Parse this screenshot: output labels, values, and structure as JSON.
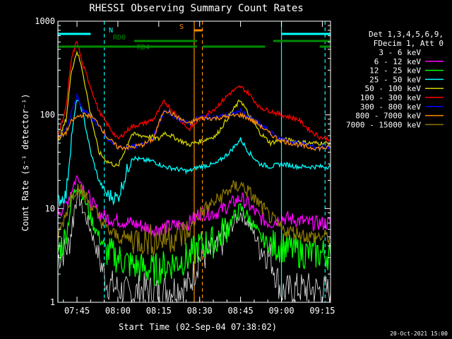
{
  "chart_data": {
    "type": "line",
    "title": "RHESSI Observing Summary Count Rates",
    "xlabel": "Start Time (02-Sep-04 07:38:02)",
    "ylabel": "Count Rate (s⁻¹ detector⁻¹)",
    "yscale": "log",
    "ylim": [
      1,
      1000
    ],
    "xlim_minutes": [
      0,
      100
    ],
    "y_ticks": [
      {
        "value": 1,
        "label": "1"
      },
      {
        "value": 10,
        "label": "10"
      },
      {
        "value": 100,
        "label": "100"
      },
      {
        "value": 1000,
        "label": "1000"
      }
    ],
    "x_ticks": [
      {
        "minute": 7,
        "label": "07:45"
      },
      {
        "minute": 22,
        "label": "08:00"
      },
      {
        "minute": 37,
        "label": "08:15"
      },
      {
        "minute": 52,
        "label": "08:30"
      },
      {
        "minute": 67,
        "label": "08:45"
      },
      {
        "minute": 82,
        "label": "09:00"
      },
      {
        "minute": 97,
        "label": "09:15"
      }
    ],
    "legend": {
      "header": [
        "Det 1,3,4,5,6,9,",
        "FDecim 1, Att 0"
      ],
      "placement": "right"
    },
    "series": [
      {
        "name": "3 - 6 keV",
        "color": "#000000",
        "points": [
          [
            0,
            3
          ],
          [
            4,
            4
          ],
          [
            7,
            15
          ],
          [
            9,
            10
          ],
          [
            12,
            6
          ],
          [
            15,
            3
          ],
          [
            18,
            1.6
          ],
          [
            22,
            1.4
          ],
          [
            27,
            1.2
          ],
          [
            31,
            1.4
          ],
          [
            35,
            1.3
          ],
          [
            48,
            1.5
          ],
          [
            52,
            3
          ],
          [
            58,
            3.5
          ],
          [
            63,
            6
          ],
          [
            67,
            9
          ],
          [
            70,
            7
          ],
          [
            74,
            4
          ],
          [
            78,
            3
          ],
          [
            82,
            1.3
          ],
          [
            88,
            1.4
          ],
          [
            92,
            1.4
          ],
          [
            100,
            1.3
          ]
        ]
      },
      {
        "name": "6 - 12 keV",
        "color": "#ff00ff",
        "points": [
          [
            0,
            9
          ],
          [
            3,
            11
          ],
          [
            5,
            16
          ],
          [
            7,
            22
          ],
          [
            9,
            18
          ],
          [
            12,
            12
          ],
          [
            15,
            9
          ],
          [
            18,
            8
          ],
          [
            22,
            7.5
          ],
          [
            27,
            7
          ],
          [
            31,
            6.5
          ],
          [
            35,
            6
          ],
          [
            48,
            7
          ],
          [
            52,
            9
          ],
          [
            58,
            9
          ],
          [
            63,
            11
          ],
          [
            67,
            13
          ],
          [
            70,
            11
          ],
          [
            74,
            8
          ],
          [
            78,
            7
          ],
          [
            82,
            8
          ],
          [
            88,
            7.5
          ],
          [
            92,
            7
          ],
          [
            100,
            7
          ]
        ]
      },
      {
        "name": "12 - 25 keV",
        "color": "#00ff00",
        "points": [
          [
            0,
            3.5
          ],
          [
            3,
            5
          ],
          [
            5,
            12
          ],
          [
            7,
            18
          ],
          [
            9,
            15
          ],
          [
            12,
            8
          ],
          [
            15,
            5
          ],
          [
            18,
            3.5
          ],
          [
            22,
            3
          ],
          [
            27,
            2.5
          ],
          [
            31,
            2.3
          ],
          [
            35,
            2.2
          ],
          [
            48,
            3
          ],
          [
            52,
            4
          ],
          [
            58,
            4.5
          ],
          [
            63,
            7
          ],
          [
            67,
            10
          ],
          [
            70,
            8
          ],
          [
            74,
            5
          ],
          [
            78,
            4
          ],
          [
            82,
            4
          ],
          [
            88,
            3.5
          ],
          [
            92,
            3.3
          ],
          [
            100,
            3.3
          ]
        ]
      },
      {
        "name": "25 - 50 keV",
        "color": "#00ffff",
        "points": [
          [
            0,
            12
          ],
          [
            3,
            14
          ],
          [
            5,
            60
          ],
          [
            7,
            150
          ],
          [
            9,
            110
          ],
          [
            12,
            40
          ],
          [
            15,
            20
          ],
          [
            18,
            14
          ],
          [
            22,
            13
          ],
          [
            27,
            35
          ],
          [
            31,
            33
          ],
          [
            35,
            32
          ],
          [
            37,
            30
          ],
          [
            39,
            28
          ],
          [
            48,
            25
          ],
          [
            52,
            28
          ],
          [
            58,
            30
          ],
          [
            63,
            40
          ],
          [
            67,
            55
          ],
          [
            70,
            40
          ],
          [
            74,
            30
          ],
          [
            78,
            28
          ],
          [
            82,
            30
          ],
          [
            88,
            28
          ],
          [
            92,
            28
          ],
          [
            96,
            28
          ],
          [
            100,
            28
          ]
        ]
      },
      {
        "name": "50 - 100 keV",
        "color": "#d0d000",
        "points": [
          [
            0,
            50
          ],
          [
            3,
            90
          ],
          [
            5,
            300
          ],
          [
            7,
            480
          ],
          [
            9,
            300
          ],
          [
            12,
            100
          ],
          [
            15,
            40
          ],
          [
            18,
            32
          ],
          [
            22,
            28
          ],
          [
            27,
            62
          ],
          [
            31,
            60
          ],
          [
            35,
            58
          ],
          [
            37,
            55
          ],
          [
            39,
            65
          ],
          [
            48,
            48
          ],
          [
            52,
            52
          ],
          [
            58,
            60
          ],
          [
            63,
            100
          ],
          [
            67,
            145
          ],
          [
            70,
            100
          ],
          [
            74,
            65
          ],
          [
            78,
            50
          ],
          [
            82,
            55
          ],
          [
            88,
            52
          ],
          [
            92,
            50
          ],
          [
            96,
            50
          ],
          [
            100,
            50
          ]
        ]
      },
      {
        "name": "100 - 300 keV",
        "color": "#ff0000",
        "points": [
          [
            0,
            60
          ],
          [
            3,
            120
          ],
          [
            5,
            400
          ],
          [
            7,
            620
          ],
          [
            9,
            350
          ],
          [
            12,
            200
          ],
          [
            15,
            110
          ],
          [
            18,
            80
          ],
          [
            22,
            55
          ],
          [
            27,
            75
          ],
          [
            31,
            80
          ],
          [
            35,
            90
          ],
          [
            37,
            110
          ],
          [
            39,
            140
          ],
          [
            48,
            70
          ],
          [
            52,
            90
          ],
          [
            58,
            120
          ],
          [
            63,
            170
          ],
          [
            67,
            200
          ],
          [
            70,
            170
          ],
          [
            74,
            120
          ],
          [
            78,
            110
          ],
          [
            82,
            100
          ],
          [
            88,
            90
          ],
          [
            92,
            70
          ],
          [
            96,
            58
          ],
          [
            100,
            55
          ]
        ]
      },
      {
        "name": "300 - 800 keV",
        "color": "#0000ff",
        "points": [
          [
            0,
            55
          ],
          [
            3,
            70
          ],
          [
            5,
            110
          ],
          [
            7,
            160
          ],
          [
            9,
            115
          ],
          [
            12,
            95
          ],
          [
            15,
            75
          ],
          [
            18,
            55
          ],
          [
            22,
            45
          ],
          [
            27,
            45
          ],
          [
            31,
            48
          ],
          [
            35,
            58
          ],
          [
            37,
            80
          ],
          [
            39,
            110
          ],
          [
            48,
            80
          ],
          [
            52,
            95
          ],
          [
            58,
            95
          ],
          [
            63,
            100
          ],
          [
            67,
            110
          ],
          [
            70,
            95
          ],
          [
            74,
            80
          ],
          [
            78,
            65
          ],
          [
            82,
            55
          ],
          [
            88,
            50
          ],
          [
            92,
            47
          ],
          [
            96,
            45
          ],
          [
            100,
            46
          ]
        ]
      },
      {
        "name": "800 - 7000 keV",
        "color": "#ff8c00",
        "points": [
          [
            0,
            55
          ],
          [
            3,
            65
          ],
          [
            5,
            85
          ],
          [
            7,
            95
          ],
          [
            9,
            100
          ],
          [
            12,
            98
          ],
          [
            15,
            80
          ],
          [
            18,
            58
          ],
          [
            22,
            45
          ],
          [
            27,
            45
          ],
          [
            31,
            48
          ],
          [
            35,
            55
          ],
          [
            37,
            80
          ],
          [
            39,
            115
          ],
          [
            48,
            80
          ],
          [
            52,
            92
          ],
          [
            58,
            92
          ],
          [
            63,
            97
          ],
          [
            67,
            100
          ],
          [
            70,
            92
          ],
          [
            74,
            78
          ],
          [
            78,
            62
          ],
          [
            82,
            53
          ],
          [
            88,
            48
          ],
          [
            92,
            45
          ],
          [
            96,
            44
          ],
          [
            100,
            45
          ]
        ]
      },
      {
        "name": "7000 - 15000 keV",
        "color": "#8b7500",
        "points": [
          [
            0,
            5
          ],
          [
            3,
            9
          ],
          [
            5,
            14
          ],
          [
            7,
            17
          ],
          [
            9,
            15
          ],
          [
            12,
            11
          ],
          [
            15,
            8
          ],
          [
            18,
            6
          ],
          [
            22,
            5
          ],
          [
            27,
            4.8
          ],
          [
            31,
            4.7
          ],
          [
            35,
            4.6
          ],
          [
            48,
            5.5
          ],
          [
            52,
            9
          ],
          [
            58,
            12
          ],
          [
            63,
            16
          ],
          [
            67,
            18
          ],
          [
            70,
            15
          ],
          [
            74,
            11
          ],
          [
            78,
            8
          ],
          [
            82,
            6
          ],
          [
            88,
            5.5
          ],
          [
            92,
            5
          ],
          [
            96,
            5
          ],
          [
            100,
            5
          ]
        ]
      }
    ],
    "state_bars": [
      {
        "label": "N",
        "color": "#00ffff",
        "segments": [
          [
            0,
            12
          ],
          [
            82,
            100
          ]
        ]
      },
      {
        "label": "RD0",
        "color": "#008b00",
        "segments": [
          [
            28,
            51
          ],
          [
            79,
            100
          ]
        ]
      },
      {
        "label": "RD4",
        "color": "#008b00",
        "segments": [
          [
            0,
            51
          ],
          [
            53,
            76
          ],
          [
            96,
            100
          ]
        ]
      },
      {
        "label": "S",
        "color": "#ff8c00",
        "segments": [
          [
            50,
            53
          ]
        ]
      }
    ],
    "markers": [
      {
        "minute": 0,
        "color": "#00ffff",
        "style": "solid"
      },
      {
        "minute": 17,
        "color": "#00ffff",
        "style": "dashed"
      },
      {
        "minute": 50,
        "color": "#ff8c00",
        "style": "solid"
      },
      {
        "minute": 53,
        "color": "#ff8c00",
        "style": "dashed"
      },
      {
        "minute": 82,
        "color": "#00ffff",
        "style": "solid"
      },
      {
        "minute": 98,
        "color": "#00ffff",
        "style": "dashed"
      }
    ]
  },
  "footer": {
    "timestamp": "20-Oct-2021 15:00"
  }
}
